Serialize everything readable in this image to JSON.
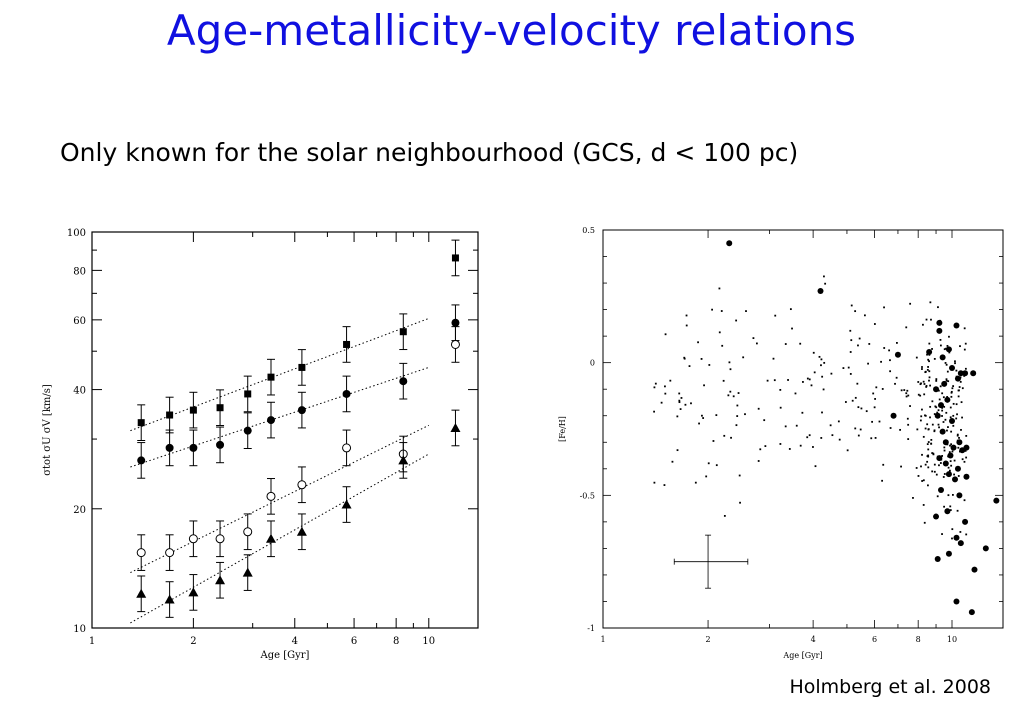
{
  "slide": {
    "title": "Age-metallicity-velocity relations",
    "subtitle": "Only known for the solar neighbourhood (GCS, d < 100 pc)",
    "credit": "Holmberg et al. 2008",
    "title_color": "#1010e0"
  },
  "chart_data": [
    {
      "type": "scatter",
      "xscale": "log",
      "yscale": "log",
      "xlim": [
        1,
        14
      ],
      "ylim": [
        10,
        100
      ],
      "xticks": [
        1,
        2,
        4,
        6,
        8,
        10
      ],
      "yticks": [
        10,
        20,
        40,
        60,
        80,
        100
      ],
      "xlabel": "Age [Gyr]",
      "ylabel": "σtot σU σV [km/s]",
      "series": [
        {
          "marker": "square-filled",
          "error": 0.045,
          "x": [
            1.4,
            1.7,
            2.0,
            2.4,
            2.9,
            3.4,
            4.2,
            5.7,
            8.4,
            12.0
          ],
          "y": [
            33,
            34.5,
            35.5,
            36,
            39,
            43,
            45.5,
            52,
            56,
            86
          ]
        },
        {
          "marker": "circle-filled",
          "error": 0.045,
          "x": [
            1.4,
            1.7,
            2.0,
            2.4,
            2.9,
            3.4,
            4.2,
            5.7,
            8.4,
            12.0
          ],
          "y": [
            26.5,
            28.5,
            28.5,
            29,
            31.5,
            33.5,
            35.5,
            39,
            42,
            59
          ]
        },
        {
          "marker": "circle-open",
          "error": 0.045,
          "x": [
            1.4,
            1.7,
            2.0,
            2.4,
            2.9,
            3.4,
            4.2,
            5.7,
            8.4,
            12.0
          ],
          "y": [
            15.5,
            15.5,
            16.8,
            16.8,
            17.5,
            21.5,
            23,
            28.5,
            27.5,
            52
          ]
        },
        {
          "marker": "triangle-filled",
          "error": 0.045,
          "x": [
            1.4,
            1.7,
            2.0,
            2.4,
            2.9,
            3.4,
            4.2,
            5.7,
            8.4,
            12.0
          ],
          "y": [
            12.2,
            11.8,
            12.3,
            13.2,
            13.8,
            16.8,
            17.5,
            20.5,
            26.5,
            32
          ]
        }
      ],
      "fits": [
        {
          "x": [
            1.3,
            10.0
          ],
          "y": [
            31.5,
            60.5
          ]
        },
        {
          "x": [
            1.3,
            10.0
          ],
          "y": [
            25.5,
            45.5
          ]
        },
        {
          "x": [
            1.3,
            10.0
          ],
          "y": [
            13.8,
            32.5
          ]
        },
        {
          "x": [
            1.3,
            10.0
          ],
          "y": [
            10.3,
            27.5
          ]
        }
      ]
    },
    {
      "type": "scatter",
      "xscale": "log",
      "xlim": [
        1,
        14
      ],
      "ylim": [
        -1,
        0.5
      ],
      "xticks": [
        1,
        2,
        4,
        6,
        8,
        10
      ],
      "yticks": [
        0.5,
        0,
        -0.5,
        -1
      ],
      "ytick_labels": [
        "0.5",
        "0",
        "-0.5",
        "-1"
      ],
      "xlabel": "Age [Gyr]",
      "ylabel": "[Fe/H]",
      "errorbar": {
        "x": 2.0,
        "y": -0.75,
        "xerr": [
          1.6,
          2.6
        ],
        "yerr": 0.1
      },
      "big_points": {
        "x": [
          2.3,
          4.2,
          9.2,
          9.4,
          8.6,
          7.0,
          6.8,
          10.0,
          9.5,
          9.2,
          9.8,
          10.3,
          10.6,
          9.0,
          10.4,
          10.9,
          9.7,
          9.3,
          9.1,
          10.0,
          10.5,
          11.5,
          9.4,
          9.6,
          10.1,
          9.9,
          10.7,
          11.0,
          13.4,
          9.2,
          9.8,
          9.6,
          10.2,
          11.0,
          9.3,
          10.5,
          12.5,
          9.0,
          10.3,
          9.8,
          10.9,
          10.3,
          11.6,
          9.1,
          10.6,
          9.7,
          11.4,
          10.4
        ],
        "y": [
          0.45,
          0.27,
          0.15,
          0.02,
          0.04,
          0.03,
          -0.2,
          -0.02,
          -0.08,
          0.12,
          0.05,
          0.14,
          -0.04,
          -0.1,
          -0.06,
          -0.04,
          -0.14,
          -0.16,
          -0.2,
          -0.22,
          -0.3,
          -0.04,
          -0.26,
          -0.3,
          -0.32,
          -0.35,
          -0.33,
          -0.43,
          -0.52,
          -0.36,
          -0.42,
          -0.38,
          -0.44,
          -0.32,
          -0.48,
          -0.5,
          -0.7,
          -0.58,
          -0.66,
          -0.72,
          -0.6,
          -0.9,
          -0.78,
          -0.74,
          -0.68,
          -0.56,
          -0.94,
          -0.4
        ]
      }
    }
  ]
}
